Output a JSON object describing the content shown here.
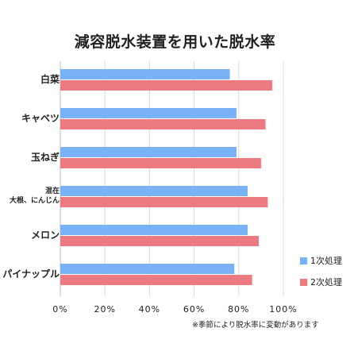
{
  "chart_data": {
    "type": "bar",
    "orientation": "horizontal",
    "title": "減容脱水装置を用いた脱水率",
    "categories": [
      "白菜",
      "キャベツ",
      "玉ねぎ",
      "混在\n大根、にんじん",
      "メロン",
      "パイナップル"
    ],
    "series": [
      {
        "name": "1次処理",
        "color": "#7ab3f5",
        "values": [
          76,
          79,
          79,
          84,
          84,
          78
        ]
      },
      {
        "name": "2次処理",
        "color": "#ec7a80",
        "values": [
          95,
          92,
          90,
          93,
          89,
          86
        ]
      }
    ],
    "xlim": [
      0,
      100
    ],
    "xticks": [
      "0%",
      "20%",
      "40%",
      "60%",
      "80%",
      "100%"
    ],
    "grid": true,
    "legend_position": "right",
    "footnote": "※季節により脱水率に変動があります"
  }
}
